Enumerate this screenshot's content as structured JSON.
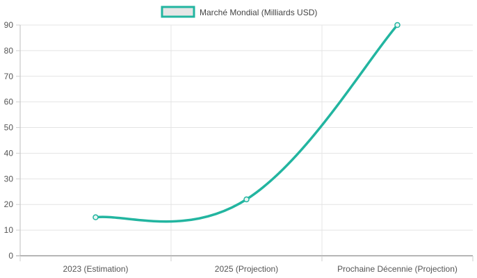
{
  "chart_data": {
    "type": "line",
    "categories": [
      "2023 (Estimation)",
      "2025 (Projection)",
      "Prochaine Décennie (Projection)"
    ],
    "series": [
      {
        "name": "Marché Mondial (Milliards USD)",
        "values": [
          15,
          22,
          90
        ],
        "color": "#22b5a0"
      }
    ],
    "ylim": [
      0,
      90
    ],
    "yticks": [
      0,
      10,
      20,
      30,
      40,
      50,
      60,
      70,
      80,
      90
    ],
    "grid": true,
    "legend_position": "top-center",
    "title": "",
    "xlabel": "",
    "ylabel": ""
  }
}
